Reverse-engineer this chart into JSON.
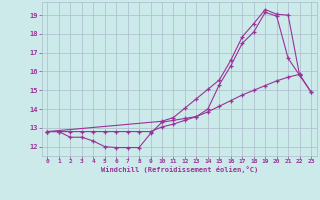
{
  "background_color": "#cceae9",
  "grid_color": "#aabbcc",
  "line_color": "#993399",
  "xlabel": "Windchill (Refroidissement éolien,°C)",
  "xlim": [
    -0.5,
    23.5
  ],
  "ylim": [
    11.5,
    19.7
  ],
  "yticks": [
    12,
    13,
    14,
    15,
    16,
    17,
    18,
    19
  ],
  "xticks": [
    0,
    1,
    2,
    3,
    4,
    5,
    6,
    7,
    8,
    9,
    10,
    11,
    12,
    13,
    14,
    15,
    16,
    17,
    18,
    19,
    20,
    21,
    22,
    23
  ],
  "curve1_x": [
    0,
    1,
    2,
    3,
    4,
    5,
    6,
    7,
    8,
    9,
    10,
    11,
    12,
    13,
    14,
    15,
    16,
    17,
    18,
    19,
    20,
    21,
    22
  ],
  "curve1_y": [
    12.8,
    12.8,
    12.5,
    12.5,
    12.3,
    12.0,
    11.95,
    11.95,
    11.95,
    12.7,
    13.3,
    13.4,
    13.5,
    13.6,
    14.0,
    15.3,
    16.3,
    17.5,
    18.1,
    19.15,
    18.95,
    16.7,
    15.8
  ],
  "curve2_x": [
    0,
    1,
    2,
    3,
    4,
    5,
    6,
    7,
    8,
    9,
    10,
    11,
    12,
    13,
    14,
    15,
    16,
    17,
    18,
    19,
    20,
    21,
    22,
    23
  ],
  "curve2_y": [
    12.8,
    12.8,
    12.8,
    12.8,
    12.8,
    12.8,
    12.8,
    12.8,
    12.8,
    12.8,
    13.05,
    13.2,
    13.4,
    13.6,
    13.85,
    14.15,
    14.45,
    14.75,
    15.0,
    15.25,
    15.5,
    15.7,
    15.85,
    14.9
  ],
  "curve3_x": [
    0,
    10,
    11,
    12,
    13,
    14,
    15,
    16,
    17,
    18,
    19,
    20,
    21,
    22,
    23
  ],
  "curve3_y": [
    12.8,
    13.35,
    13.55,
    14.05,
    14.55,
    15.05,
    15.55,
    16.6,
    17.85,
    18.55,
    19.3,
    19.05,
    19.0,
    15.8,
    14.9
  ]
}
